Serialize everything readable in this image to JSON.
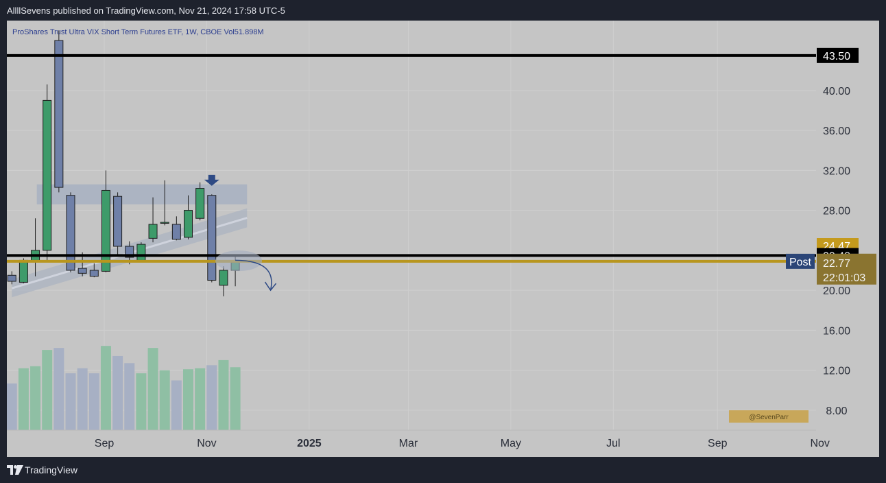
{
  "header": {
    "published_text": "AllllSevens published on TradingView.com, Nov 21, 2024 17:58 UTC-5"
  },
  "footer": {
    "brand": "TradingView",
    "logo_icon": "tradingview-logo-icon"
  },
  "watermark": "@SevenParr",
  "colors": {
    "up": "#3e9b6a",
    "down": "#6f80a8",
    "outline": "#1e1e1e",
    "vol_up": "#8fbfa4",
    "vol_down": "#a7b0c4",
    "gold": "#b8961e",
    "zone": "#a3adc0",
    "blue_label": "#2b4577",
    "arrow": "#2e4a85"
  },
  "chart_data": {
    "type": "candlestick",
    "title": "ProShares Trust Ultra VIX Short Term Futures ETF, 1W, CBOE  Vol51.898M",
    "ylim": [
      6.0,
      45.0
    ],
    "y_ticks": [
      8.0,
      12.0,
      16.0,
      20.0,
      32.0,
      36.0,
      40.0
    ],
    "y_tick_labels": [
      "8.00",
      "12.00",
      "16.00",
      "20.00",
      "32.00",
      "36.00",
      "40.00"
    ],
    "x_ticks": [
      {
        "label": "Sep",
        "date": "2024-09-01",
        "bold": false
      },
      {
        "label": "Nov",
        "date": "2024-11-01",
        "bold": false
      },
      {
        "label": "2025",
        "date": "2025-01-01",
        "bold": true
      },
      {
        "label": "Mar",
        "date": "2025-03-01",
        "bold": false
      },
      {
        "label": "May",
        "date": "2025-05-01",
        "bold": false
      },
      {
        "label": "Jul",
        "date": "2025-07-01",
        "bold": false
      },
      {
        "label": "Sep",
        "date": "2025-09-01",
        "bold": false
      },
      {
        "label": "Nov",
        "date": "2025-11-01",
        "bold": false
      }
    ],
    "candles": [
      {
        "date": "2024-07-08",
        "o": 21.5,
        "h": 21.9,
        "l": 20.6,
        "c": 20.9
      },
      {
        "date": "2024-07-15",
        "o": 20.8,
        "h": 23.2,
        "l": 20.7,
        "c": 23.0
      },
      {
        "date": "2024-07-22",
        "o": 23.0,
        "h": 27.2,
        "l": 21.4,
        "c": 24.0
      },
      {
        "date": "2024-07-29",
        "o": 24.0,
        "h": 40.6,
        "l": 22.8,
        "c": 39.0
      },
      {
        "date": "2024-08-05",
        "o": 45.0,
        "h": 46.0,
        "l": 29.8,
        "c": 30.3
      },
      {
        "date": "2024-08-12",
        "o": 29.5,
        "h": 29.8,
        "l": 21.8,
        "c": 22.0
      },
      {
        "date": "2024-08-19",
        "o": 22.2,
        "h": 23.8,
        "l": 21.4,
        "c": 21.7
      },
      {
        "date": "2024-08-26",
        "o": 22.0,
        "h": 22.7,
        "l": 21.3,
        "c": 21.4
      },
      {
        "date": "2024-09-02",
        "o": 21.9,
        "h": 32.0,
        "l": 21.8,
        "c": 30.0
      },
      {
        "date": "2024-09-09",
        "o": 29.4,
        "h": 29.8,
        "l": 23.4,
        "c": 24.4
      },
      {
        "date": "2024-09-16",
        "o": 24.4,
        "h": 24.9,
        "l": 22.6,
        "c": 23.3
      },
      {
        "date": "2024-09-23",
        "o": 23.0,
        "h": 24.8,
        "l": 22.8,
        "c": 24.6
      },
      {
        "date": "2024-09-30",
        "o": 25.2,
        "h": 29.3,
        "l": 24.8,
        "c": 26.6
      },
      {
        "date": "2024-10-07",
        "o": 26.7,
        "h": 31.0,
        "l": 26.5,
        "c": 26.8
      },
      {
        "date": "2024-10-14",
        "o": 26.6,
        "h": 27.4,
        "l": 25.0,
        "c": 25.1
      },
      {
        "date": "2024-10-21",
        "o": 25.3,
        "h": 29.5,
        "l": 25.1,
        "c": 28.0
      },
      {
        "date": "2024-10-28",
        "o": 27.2,
        "h": 30.8,
        "l": 27.0,
        "c": 30.2
      },
      {
        "date": "2024-11-04",
        "o": 29.5,
        "h": 29.6,
        "l": 20.8,
        "c": 21.0
      },
      {
        "date": "2024-11-11",
        "o": 20.5,
        "h": 22.4,
        "l": 19.4,
        "c": 22.0
      },
      {
        "date": "2024-11-18",
        "o": 22.0,
        "h": 23.5,
        "l": 20.4,
        "c": 22.8
      }
    ],
    "volume_relative": [
      0.46,
      0.61,
      0.63,
      0.79,
      0.81,
      0.56,
      0.61,
      0.56,
      0.83,
      0.73,
      0.66,
      0.56,
      0.81,
      0.59,
      0.49,
      0.6,
      0.61,
      0.64,
      0.69,
      0.62
    ],
    "price_labels": [
      {
        "value": 43.5,
        "text": "43.50",
        "style": "black"
      },
      {
        "value": 24.47,
        "text": "24.47",
        "style": "gold"
      },
      {
        "value": 23.48,
        "text": "23.48",
        "style": "black"
      },
      {
        "value": 22.9,
        "text": "22.90",
        "style": "post",
        "tag": "Post"
      },
      {
        "value": 22.77,
        "text": "22.77",
        "style": "last",
        "countdown": "22:01:03"
      }
    ],
    "hidden_tick": {
      "value": 28.0,
      "text": "28.00"
    },
    "lines": [
      {
        "value": 43.5,
        "color": "black"
      },
      {
        "value": 23.48,
        "color": "black"
      },
      {
        "value": 22.9,
        "color": "gold"
      }
    ],
    "resistance_zone": {
      "from": "2024-07-29",
      "to": "2024-11-25",
      "low": 28.6,
      "high": 30.6
    },
    "trend_channel": {
      "from": "2024-07-08",
      "to": "2024-11-25",
      "start": [
        19.3,
        21.1
      ],
      "end": [
        26.3,
        28.2
      ]
    },
    "markers": [
      {
        "type": "down-arrow",
        "date": "2024-11-04",
        "value": 31.0
      },
      {
        "type": "ellipse",
        "date": "2024-11-18",
        "value": 22.95
      },
      {
        "type": "curved-arrow",
        "from_date": "2024-11-18",
        "from_value": 23.0,
        "to_date": "2024-12-09",
        "to_value": 20.0
      }
    ]
  }
}
